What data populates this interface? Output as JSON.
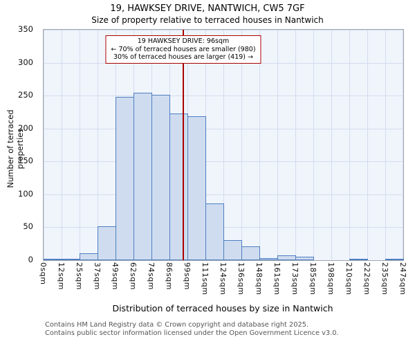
{
  "chart_data": {
    "type": "bar",
    "title": "19, HAWKSEY DRIVE, NANTWICH, CW5 7GF",
    "subtitle": "Size of property relative to terraced houses in Nantwich",
    "xlabel": "Distribution of terraced houses by size in Nantwich",
    "ylabel": "Number of terraced properties",
    "ylim": [
      0,
      350
    ],
    "yticks": [
      0,
      50,
      100,
      150,
      200,
      250,
      300,
      350
    ],
    "bin_edges": [
      0,
      12,
      25,
      37,
      49,
      62,
      74,
      86,
      99,
      111,
      124,
      136,
      148,
      161,
      173,
      185,
      198,
      210,
      222,
      235,
      247
    ],
    "tick_labels": [
      "0sqm",
      "12sqm",
      "25sqm",
      "37sqm",
      "49sqm",
      "62sqm",
      "74sqm",
      "86sqm",
      "99sqm",
      "111sqm",
      "124sqm",
      "136sqm",
      "148sqm",
      "161sqm",
      "173sqm",
      "185sqm",
      "198sqm",
      "210sqm",
      "222sqm",
      "235sqm",
      "247sqm"
    ],
    "values": [
      2,
      1,
      11,
      51,
      248,
      254,
      251,
      223,
      219,
      86,
      31,
      21,
      3,
      7,
      5,
      0,
      0,
      1,
      0,
      2
    ],
    "grid": true,
    "legend": false,
    "marker": {
      "value": 96,
      "color": "#aa0000"
    },
    "annotation": {
      "line1": "19 HAWKSEY DRIVE: 96sqm",
      "line2": "← 70% of terraced houses are smaller (980)",
      "line3": "30% of terraced houses are larger (419) →"
    },
    "colors": {
      "bar_fill": "#cfdcf0",
      "bar_border": "#4d7ec0",
      "grid": "#d4dcec",
      "plot_bg": "#f0f5fc",
      "marker": "#aa0000"
    }
  },
  "footer": {
    "line1": "Contains HM Land Registry data © Crown copyright and database right 2025.",
    "line2": "Contains public sector information licensed under the Open Government Licence v3.0."
  }
}
